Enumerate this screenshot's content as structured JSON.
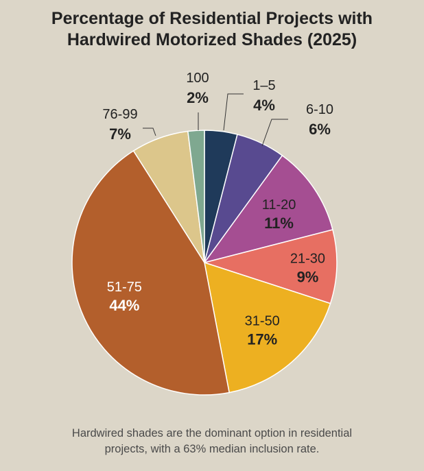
{
  "title_lines": [
    "Percentage of Residential Projects with",
    "Hardwired Motorized Shades (2025)"
  ],
  "caption_lines": [
    "Hardwired shades are the dominant option in residential",
    "projects, with a 63% median inclusion rate."
  ],
  "chart_data": {
    "type": "pie",
    "title": "Percentage of Residential Projects with Hardwired Motorized Shades (2025)",
    "start": "12 o'clock",
    "direction": "clockwise",
    "slices": [
      {
        "category": "1–5",
        "percent_label": "4%",
        "value": 4,
        "color": "#1f3a5a",
        "label_position": "outside"
      },
      {
        "category": "6-10",
        "percent_label": "6%",
        "value": 6,
        "color": "#584a90",
        "label_position": "outside"
      },
      {
        "category": "11-20",
        "percent_label": "11%",
        "value": 11,
        "color": "#a54e92",
        "label_position": "inside"
      },
      {
        "category": "21-30",
        "percent_label": "9%",
        "value": 9,
        "color": "#e76f62",
        "label_position": "inside"
      },
      {
        "category": "31-50",
        "percent_label": "17%",
        "value": 17,
        "color": "#edb021",
        "label_position": "inside"
      },
      {
        "category": "51-75",
        "percent_label": "44%",
        "value": 44,
        "color": "#b35f2c",
        "label_position": "inside",
        "label_color": "#ffffff"
      },
      {
        "category": "76-99",
        "percent_label": "7%",
        "value": 7,
        "color": "#dcc68b",
        "label_position": "outside"
      },
      {
        "category": "100",
        "percent_label": "2%",
        "value": 2,
        "color": "#7fa890",
        "label_position": "outside"
      }
    ]
  }
}
